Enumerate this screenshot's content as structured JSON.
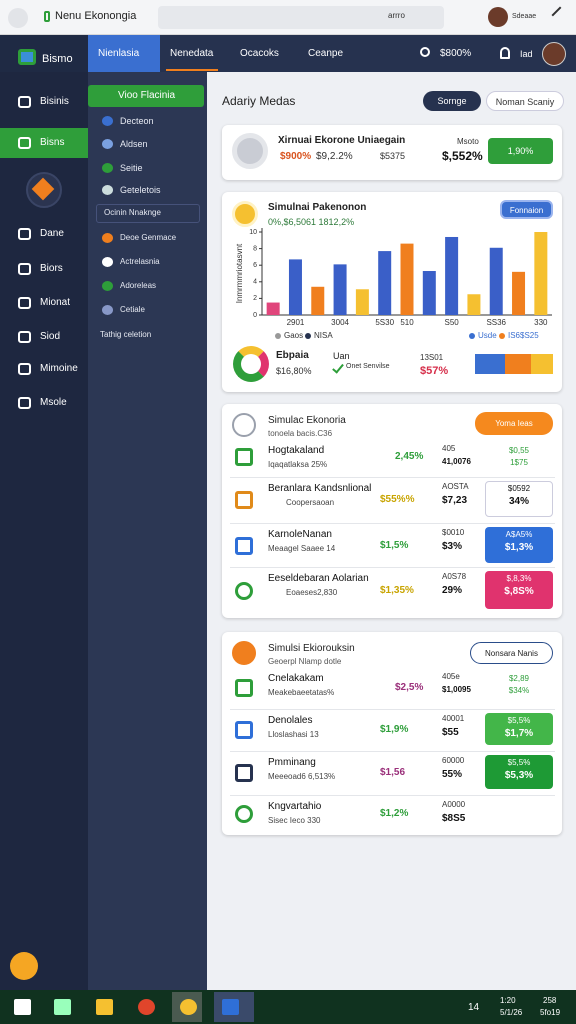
{
  "browser": {
    "tab": "Nenu Ekonongia",
    "address": "arrro",
    "user": "Sdeaae"
  },
  "nav": {
    "brand": "Bismo",
    "tabs": [
      "Nienlasia",
      "Nenedata",
      "Ocacoks",
      "Ceanpe"
    ],
    "search": "$800%",
    "user": "Iad"
  },
  "sidebar": [
    "Bisinis",
    "Bisns",
    "Dane",
    "Biors",
    "Mionat",
    "Siod",
    "Mimoine",
    "Msole"
  ],
  "subnav": {
    "button": "Vioo Flacinia",
    "items": [
      "Decteon",
      "Aldsen",
      "Seitie",
      "Geteletois",
      "Ocinin Nnaknge",
      "Deoe Genmace",
      "Actrelasnia",
      "Adoreleas",
      "Cetiale",
      "Tathig celetion"
    ]
  },
  "main": {
    "title": "Adariy Medas",
    "buttons": [
      "Sornge",
      "Noman Scaniy"
    ]
  },
  "summary": {
    "title": "Xirnuai Ekorone Uniaegain",
    "stat1": "$900%",
    "stat2": "$9,2.2%",
    "stat3": "$5375",
    "label": "Msoto",
    "total": "$,552%",
    "button": "1,90%"
  },
  "chart_card": {
    "title": "Simulnai Pakenonon",
    "subtitle": "0%,$6,5061 1812,2%",
    "button": "Fonnaion",
    "legend": [
      "Gaos",
      "NISA",
      "Usde",
      "IS6$S25"
    ],
    "stat_title": "Ebpaia",
    "stat_value": "$16,80%",
    "mid_title": "Uan",
    "mid_sub": "Onet Senvilse",
    "right_label": "13S01",
    "right_value": "$57%"
  },
  "chart_data": {
    "type": "bar",
    "y_label": "Inmrmmriotasvnt",
    "categories": [
      null,
      "2901",
      null,
      "3004",
      null,
      "5S30",
      "510",
      null,
      "S50",
      null,
      "SS36",
      null,
      "330"
    ],
    "values": [
      1.5,
      6.7,
      3.4,
      6.1,
      3.1,
      7.7,
      8.6,
      5.3,
      9.4,
      2.5,
      8.1,
      5.2,
      10
    ],
    "colors": [
      "#e0457b",
      "#3a5fc8",
      "#f07f1e",
      "#3a5fc8",
      "#f5c030",
      "#3a5fc8",
      "#f07f1e",
      "#3a5fc8",
      "#3a5fc8",
      "#f5c030",
      "#3a5fc8",
      "#f07f1e",
      "#f5c030"
    ],
    "ylim": [
      0,
      10
    ],
    "yticks": [
      0,
      2,
      4,
      6,
      8,
      10
    ],
    "grid": false
  },
  "cards": [
    {
      "title": "Simulac Ekonoria",
      "subtitle": "tonoela bacis.C36",
      "button": "Yoma Ieas",
      "rows": [
        {
          "title": "Hogtakaland",
          "subtitle": "Iqaqatlaksa 25%",
          "value": "2,45%",
          "color": "#2e9e3a",
          "mid": [
            "405",
            "41,0076"
          ],
          "badge": [
            "$0,55",
            "1$75"
          ]
        },
        {
          "title": "Beranlara Kandsnlional",
          "subtitle": "Coopersaoan",
          "value": "$55%%",
          "color": "#c8a400",
          "mid": [
            "AOSTA",
            "$7,23"
          ],
          "badge": [
            "$0592",
            "34%"
          ],
          "badge_color": "#ffffff"
        },
        {
          "title": "KarnoleNanan",
          "subtitle": "Meaagel Saaee 14",
          "value": "$1,5%",
          "color": "#2e9e3a",
          "mid": [
            "$0010",
            "$3%"
          ],
          "badge": [
            "A$A5%",
            "$1,3%"
          ],
          "badge_color": "#2f6fd8"
        },
        {
          "title": "Eeseldebaran Aolarian",
          "subtitle": "Eoaeses2,830",
          "value": "$1,35%",
          "color": "#c8a400",
          "mid": [
            "A0S78",
            "29%"
          ],
          "badge": [
            "$,8,3%",
            "$,8S%"
          ],
          "badge_color": "#e0336e"
        }
      ]
    },
    {
      "title": "Simulsi Ekiorouksin",
      "subtitle": "Geoerpl Nlamp dotle",
      "button": "Nonsara Nanis",
      "rows": [
        {
          "title": "Cnelakakam",
          "subtitle": "Meakebaeetatas%",
          "value": "$2,5%",
          "color": "#9a2f7a",
          "mid": [
            "405e",
            "$1,0095"
          ],
          "badge": [
            "$2,89",
            "$34%"
          ]
        },
        {
          "title": "Denolales",
          "subtitle": "Lloslashasi 13",
          "value": "$1,9%",
          "color": "#2e9e3a",
          "mid": [
            "40001",
            "$55"
          ],
          "badge": [
            "$5,5%",
            "$1,7%"
          ],
          "badge_color": "#43b649"
        },
        {
          "title": "Pmminang",
          "subtitle": "Meeeoad6 6,513%",
          "value": "$1,56",
          "color": "#9a2f7a",
          "mid": [
            "60000",
            "55%"
          ],
          "badge": [
            "$5,5%",
            "$5,3%"
          ],
          "badge_color": "#1e9a35"
        },
        {
          "title": "Kngvartahio",
          "subtitle": "Sisec Ieco 330",
          "value": "$1,2%",
          "color": "#2e9e3a",
          "mid": [
            "A0000",
            "$8S5"
          ]
        }
      ]
    }
  ],
  "taskbar": {
    "tray": "14",
    "time": "1:20",
    "date": "5/1/26",
    "clock": "258",
    "clock_sub": "5fo19"
  }
}
